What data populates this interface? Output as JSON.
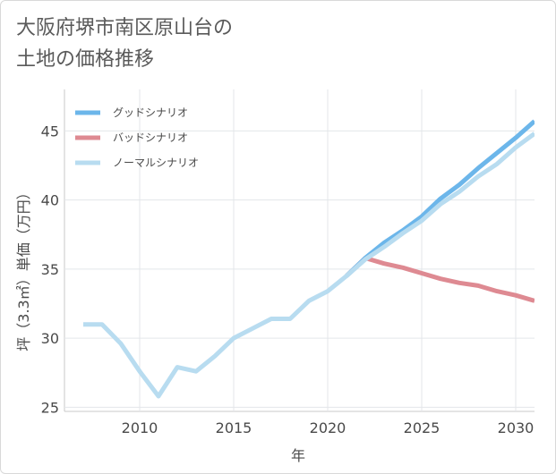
{
  "chart_data": {
    "type": "line",
    "title_lines": [
      "大阪府堺市南区原山台の",
      "土地の価格推移"
    ],
    "xlabel": "年",
    "ylabel": "坪（3.3㎡）単価（万円）",
    "xlim": [
      2006.0,
      2031.0
    ],
    "ylim": [
      24.7,
      48.0
    ],
    "xticks": [
      2010,
      2015,
      2020,
      2025,
      2030
    ],
    "yticks": [
      25,
      30,
      35,
      40,
      45
    ],
    "grid": true,
    "legend_position": "top-left",
    "series": [
      {
        "name": "グッドシナリオ",
        "color": "#6cb6ea",
        "x": [
          2021,
          2022,
          2023,
          2024,
          2025,
          2026,
          2027,
          2028,
          2029,
          2030,
          2031
        ],
        "y": [
          34.5,
          35.8,
          36.9,
          37.8,
          38.8,
          40.1,
          41.1,
          42.3,
          43.4,
          44.5,
          45.7
        ]
      },
      {
        "name": "バッドシナリオ",
        "color": "#de8a92",
        "x": [
          2021,
          2022,
          2023,
          2024,
          2025,
          2026,
          2027,
          2028,
          2029,
          2030,
          2031
        ],
        "y": [
          34.5,
          35.8,
          35.4,
          35.1,
          34.7,
          34.3,
          34.0,
          33.8,
          33.4,
          33.1,
          32.7
        ]
      },
      {
        "name": "ノーマルシナリオ",
        "color": "#b8dcf0",
        "x": [
          2007,
          2008,
          2009,
          2010,
          2011,
          2012,
          2013,
          2014,
          2015,
          2016,
          2017,
          2018,
          2019,
          2020,
          2021,
          2022,
          2023,
          2024,
          2025,
          2026,
          2027,
          2028,
          2029,
          2030,
          2031
        ],
        "y": [
          31.0,
          31.0,
          29.6,
          27.6,
          25.8,
          27.9,
          27.6,
          28.7,
          30.0,
          30.7,
          31.4,
          31.4,
          32.7,
          33.4,
          34.5,
          35.7,
          36.6,
          37.6,
          38.5,
          39.7,
          40.6,
          41.7,
          42.6,
          43.8,
          44.8
        ]
      }
    ]
  }
}
